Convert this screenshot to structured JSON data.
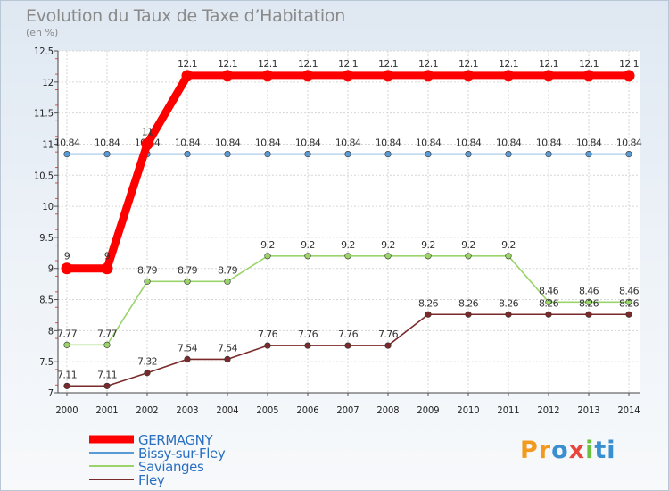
{
  "chart_data": {
    "type": "line",
    "title": "Evolution du Taux de Taxe d’Habitation",
    "subtitle": "(en %)",
    "xlabel": "",
    "ylabel": "",
    "ylim": [
      7,
      12.5
    ],
    "yticks": [
      "7",
      "7.5",
      "8",
      "8.5",
      "9",
      "9.5",
      "10",
      "10.5",
      "11",
      "11.5",
      "12",
      "12.5"
    ],
    "x": [
      "2000",
      "2001",
      "2002",
      "2003",
      "2004",
      "2005",
      "2006",
      "2007",
      "2008",
      "2009",
      "2010",
      "2011",
      "2012",
      "2013",
      "2014"
    ],
    "series": [
      {
        "name": "Bissy-sur-Fley",
        "color": "#5b9bd5",
        "values": [
          10.84,
          10.84,
          10.84,
          10.84,
          10.84,
          10.84,
          10.84,
          10.84,
          10.84,
          10.84,
          10.84,
          10.84,
          10.84,
          10.84,
          10.84
        ],
        "labels": [
          "10.84",
          "10.84",
          "10.84",
          "10.84",
          "10.84",
          "10.84",
          "10.84",
          "10.84",
          "10.84",
          "10.84",
          "10.84",
          "10.84",
          "10.84",
          "10.84",
          "10.84"
        ]
      },
      {
        "name": "Savianges",
        "color": "#9ad46a",
        "values": [
          7.77,
          7.77,
          8.79,
          8.79,
          8.79,
          9.2,
          9.2,
          9.2,
          9.2,
          9.2,
          9.2,
          9.2,
          8.46,
          8.46,
          8.46
        ],
        "labels": [
          "7.77",
          "7.77",
          "8.79",
          "8.79",
          "8.79",
          "9.2",
          "9.2",
          "9.2",
          "9.2",
          "9.2",
          "9.2",
          "9.2",
          "8.46",
          "8.46",
          "8.46"
        ]
      },
      {
        "name": "Fley",
        "color": "#7a2a2a",
        "values": [
          7.11,
          7.11,
          7.32,
          7.54,
          7.54,
          7.76,
          7.76,
          7.76,
          7.76,
          8.26,
          8.26,
          8.26,
          8.26,
          8.26,
          8.26
        ],
        "labels": [
          "7.11",
          "7.11",
          "7.32",
          "7.54",
          "7.54",
          "7.76",
          "7.76",
          "7.76",
          "7.76",
          "8.26",
          "8.26",
          "8.26",
          "8.26",
          "8.26",
          "8.26"
        ]
      },
      {
        "name": "GERMAGNY",
        "color": "#ff0000",
        "values": [
          9,
          9,
          11,
          12.1,
          12.1,
          12.1,
          12.1,
          12.1,
          12.1,
          12.1,
          12.1,
          12.1,
          12.1,
          12.1,
          12.1
        ],
        "labels": [
          "9",
          "9",
          "11",
          "12.1",
          "12.1",
          "12.1",
          "12.1",
          "12.1",
          "12.1",
          "12.1",
          "12.1",
          "12.1",
          "12.1",
          "12.1",
          "12.1"
        ]
      }
    ],
    "legend": [
      "GERMAGNY",
      "Bissy-sur-Fley",
      "Savianges",
      "Fley"
    ],
    "legend_position": "bottom-left"
  },
  "logo": {
    "p1": "Pr",
    "p2": "o",
    "p3": "x",
    "p4": "i",
    "p5": "ti"
  }
}
